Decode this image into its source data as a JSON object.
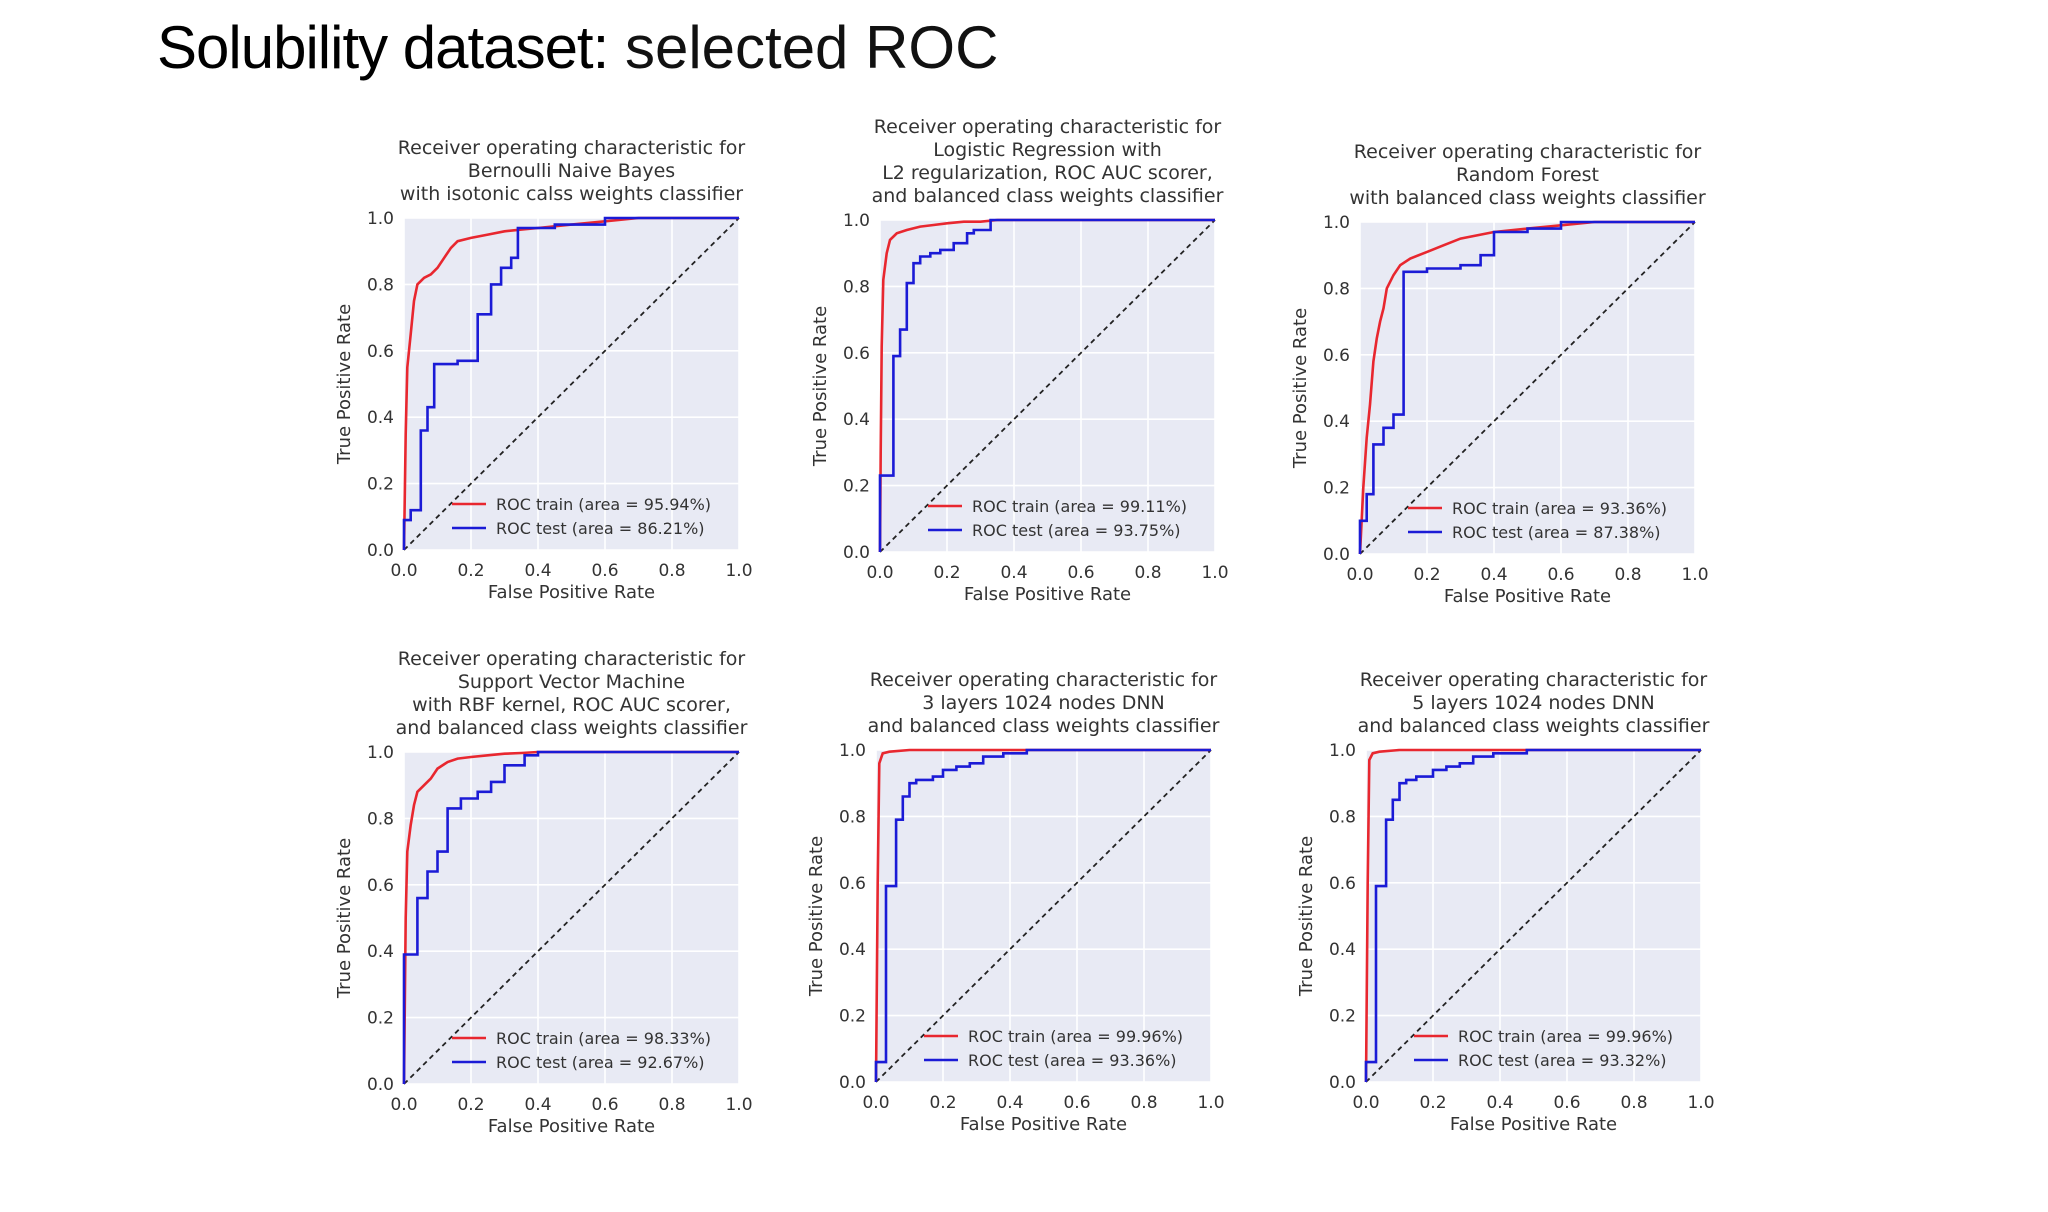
{
  "slide": {
    "title_bold": "Solubility dataset:",
    "title_rest": " selected ROC"
  },
  "chart_data": [
    {
      "type": "line",
      "title": [
        "Receiver operating characteristic for",
        "Bernoulli Naive Bayes",
        "with isotonic calss weights classifier"
      ],
      "xlabel": "False Positive Rate",
      "ylabel": "True Positive Rate",
      "xlim": [
        0,
        1
      ],
      "ylim": [
        0,
        1
      ],
      "ticks": [
        "0.0",
        "0.2",
        "0.4",
        "0.6",
        "0.8",
        "1.0"
      ],
      "legend": "lower-right",
      "grid": true,
      "series": [
        {
          "name": "ROC train (area = 95.94%)",
          "color": "#e8272f",
          "x": [
            0,
            0.005,
            0.01,
            0.02,
            0.03,
            0.04,
            0.06,
            0.08,
            0.1,
            0.12,
            0.14,
            0.16,
            0.2,
            0.25,
            0.3,
            0.35,
            0.4,
            0.5,
            0.6,
            0.7,
            1.0
          ],
          "y": [
            0,
            0.35,
            0.55,
            0.65,
            0.75,
            0.8,
            0.82,
            0.83,
            0.85,
            0.88,
            0.91,
            0.93,
            0.94,
            0.95,
            0.96,
            0.965,
            0.97,
            0.98,
            0.99,
            1.0,
            1.0
          ]
        },
        {
          "name": "ROC test (area = 86.21%)",
          "color": "#1b1bd6",
          "x": [
            0,
            0,
            0.02,
            0.02,
            0.05,
            0.05,
            0.07,
            0.07,
            0.09,
            0.09,
            0.16,
            0.16,
            0.22,
            0.22,
            0.26,
            0.26,
            0.29,
            0.29,
            0.32,
            0.32,
            0.34,
            0.34,
            0.45,
            0.45,
            0.6,
            0.6,
            1.0
          ],
          "y": [
            0,
            0.09,
            0.09,
            0.12,
            0.12,
            0.36,
            0.36,
            0.43,
            0.43,
            0.56,
            0.56,
            0.57,
            0.57,
            0.71,
            0.71,
            0.8,
            0.8,
            0.85,
            0.85,
            0.88,
            0.88,
            0.97,
            0.97,
            0.98,
            0.98,
            1.0,
            1.0
          ]
        },
        {
          "name": "",
          "color": "#222222",
          "dashed": true,
          "x": [
            0,
            1
          ],
          "y": [
            0,
            1
          ]
        }
      ]
    },
    {
      "type": "line",
      "title": [
        "Receiver operating characteristic for",
        "Logistic Regression with",
        "L2 regularization, ROC AUC scorer,",
        "and balanced class weights classifier"
      ],
      "xlabel": "False Positive Rate",
      "ylabel": "True Positive Rate",
      "xlim": [
        0,
        1
      ],
      "ylim": [
        0,
        1
      ],
      "ticks": [
        "0.0",
        "0.2",
        "0.4",
        "0.6",
        "0.8",
        "1.0"
      ],
      "legend": "lower-right",
      "grid": true,
      "series": [
        {
          "name": "ROC train (area = 99.11%)",
          "color": "#e8272f",
          "x": [
            0,
            0.002,
            0.005,
            0.01,
            0.02,
            0.03,
            0.05,
            0.08,
            0.12,
            0.16,
            0.2,
            0.25,
            0.3,
            0.35,
            1.0
          ],
          "y": [
            0,
            0.3,
            0.62,
            0.82,
            0.9,
            0.94,
            0.96,
            0.97,
            0.98,
            0.985,
            0.99,
            0.995,
            0.995,
            1.0,
            1.0
          ]
        },
        {
          "name": "ROC test (area = 93.75%)",
          "color": "#1b1bd6",
          "x": [
            0,
            0,
            0.04,
            0.04,
            0.06,
            0.06,
            0.08,
            0.08,
            0.1,
            0.1,
            0.12,
            0.12,
            0.15,
            0.15,
            0.18,
            0.18,
            0.22,
            0.22,
            0.26,
            0.26,
            0.28,
            0.28,
            0.33,
            0.33,
            1.0
          ],
          "y": [
            0,
            0.23,
            0.23,
            0.59,
            0.59,
            0.67,
            0.67,
            0.81,
            0.81,
            0.87,
            0.87,
            0.89,
            0.89,
            0.9,
            0.9,
            0.91,
            0.91,
            0.93,
            0.93,
            0.96,
            0.96,
            0.97,
            0.97,
            1.0,
            1.0
          ]
        },
        {
          "name": "",
          "color": "#222222",
          "dashed": true,
          "x": [
            0,
            1
          ],
          "y": [
            0,
            1
          ]
        }
      ]
    },
    {
      "type": "line",
      "title": [
        "Receiver operating characteristic for",
        "Random Forest",
        "with balanced class weights  classifier"
      ],
      "xlabel": "False Positive Rate",
      "ylabel": "True Positive Rate",
      "xlim": [
        0,
        1
      ],
      "ylim": [
        0,
        1
      ],
      "ticks": [
        "0.0",
        "0.2",
        "0.4",
        "0.6",
        "0.8",
        "1.0"
      ],
      "legend": "lower-right",
      "grid": true,
      "series": [
        {
          "name": "ROC train (area = 93.36%)",
          "color": "#e8272f",
          "x": [
            0,
            0.01,
            0.02,
            0.03,
            0.04,
            0.05,
            0.06,
            0.07,
            0.08,
            0.1,
            0.12,
            0.15,
            0.2,
            0.25,
            0.3,
            0.4,
            0.5,
            0.6,
            0.7,
            1.0
          ],
          "y": [
            0,
            0.2,
            0.35,
            0.45,
            0.58,
            0.65,
            0.7,
            0.74,
            0.8,
            0.84,
            0.87,
            0.89,
            0.91,
            0.93,
            0.95,
            0.97,
            0.98,
            0.99,
            1.0,
            1.0
          ]
        },
        {
          "name": "ROC test (area = 87.38%)",
          "color": "#1b1bd6",
          "x": [
            0,
            0,
            0.02,
            0.02,
            0.04,
            0.04,
            0.07,
            0.07,
            0.1,
            0.1,
            0.13,
            0.13,
            0.2,
            0.2,
            0.3,
            0.3,
            0.36,
            0.36,
            0.4,
            0.4,
            0.5,
            0.5,
            0.6,
            0.6,
            1.0
          ],
          "y": [
            0,
            0.1,
            0.1,
            0.18,
            0.18,
            0.33,
            0.33,
            0.38,
            0.38,
            0.42,
            0.42,
            0.85,
            0.85,
            0.86,
            0.86,
            0.87,
            0.87,
            0.9,
            0.9,
            0.97,
            0.97,
            0.98,
            0.98,
            1.0,
            1.0
          ]
        },
        {
          "name": "",
          "color": "#222222",
          "dashed": true,
          "x": [
            0,
            1
          ],
          "y": [
            0,
            1
          ]
        }
      ]
    },
    {
      "type": "line",
      "title": [
        "Receiver operating characteristic for",
        "Support Vector Machine",
        "with RBF kernel, ROC AUC scorer,",
        "and balanced class weights  classifier"
      ],
      "xlabel": "False Positive Rate",
      "ylabel": "True Positive Rate",
      "xlim": [
        0,
        1
      ],
      "ylim": [
        0,
        1
      ],
      "ticks": [
        "0.0",
        "0.2",
        "0.4",
        "0.6",
        "0.8",
        "1.0"
      ],
      "legend": "lower-right",
      "grid": true,
      "series": [
        {
          "name": "ROC train (area = 98.33%)",
          "color": "#e8272f",
          "x": [
            0,
            0.005,
            0.01,
            0.02,
            0.03,
            0.04,
            0.06,
            0.08,
            0.1,
            0.13,
            0.16,
            0.2,
            0.25,
            0.3,
            0.35,
            0.4,
            1.0
          ],
          "y": [
            0,
            0.5,
            0.7,
            0.78,
            0.84,
            0.88,
            0.9,
            0.92,
            0.95,
            0.97,
            0.98,
            0.985,
            0.99,
            0.995,
            0.997,
            1.0,
            1.0
          ]
        },
        {
          "name": "ROC test (area = 92.67%)",
          "color": "#1b1bd6",
          "x": [
            0,
            0,
            0.04,
            0.04,
            0.07,
            0.07,
            0.1,
            0.1,
            0.13,
            0.13,
            0.17,
            0.17,
            0.22,
            0.22,
            0.26,
            0.26,
            0.3,
            0.3,
            0.36,
            0.36,
            0.4,
            0.4,
            1.0
          ],
          "y": [
            0,
            0.39,
            0.39,
            0.56,
            0.56,
            0.64,
            0.64,
            0.7,
            0.7,
            0.83,
            0.83,
            0.86,
            0.86,
            0.88,
            0.88,
            0.91,
            0.91,
            0.96,
            0.96,
            0.99,
            0.99,
            1.0,
            1.0
          ]
        },
        {
          "name": "",
          "color": "#222222",
          "dashed": true,
          "x": [
            0,
            1
          ],
          "y": [
            0,
            1
          ]
        }
      ]
    },
    {
      "type": "line",
      "title": [
        "Receiver operating characteristic for",
        "3 layers 1024 nodes DNN",
        "and balanced class weights classifier"
      ],
      "xlabel": "False Positive Rate",
      "ylabel": "True Positive Rate",
      "xlim": [
        0,
        1
      ],
      "ylim": [
        0,
        1
      ],
      "ticks": [
        "0.0",
        "0.2",
        "0.4",
        "0.6",
        "0.8",
        "1.0"
      ],
      "legend": "lower-right",
      "grid": true,
      "series": [
        {
          "name": "ROC train (area = 99.96%)",
          "color": "#e8272f",
          "x": [
            0,
            0.005,
            0.01,
            0.02,
            0.04,
            0.1,
            1.0
          ],
          "y": [
            0,
            0.6,
            0.96,
            0.99,
            0.995,
            1.0,
            1.0
          ]
        },
        {
          "name": "ROC test (area = 93.36%)",
          "color": "#1b1bd6",
          "x": [
            0,
            0,
            0.03,
            0.03,
            0.06,
            0.06,
            0.08,
            0.08,
            0.1,
            0.1,
            0.12,
            0.12,
            0.17,
            0.17,
            0.2,
            0.2,
            0.24,
            0.24,
            0.28,
            0.28,
            0.32,
            0.32,
            0.38,
            0.38,
            0.45,
            0.45,
            1.0
          ],
          "y": [
            0,
            0.06,
            0.06,
            0.59,
            0.59,
            0.79,
            0.79,
            0.86,
            0.86,
            0.9,
            0.9,
            0.91,
            0.91,
            0.92,
            0.92,
            0.94,
            0.94,
            0.95,
            0.95,
            0.96,
            0.96,
            0.98,
            0.98,
            0.99,
            0.99,
            1.0,
            1.0
          ]
        },
        {
          "name": "",
          "color": "#222222",
          "dashed": true,
          "x": [
            0,
            1
          ],
          "y": [
            0,
            1
          ]
        }
      ]
    },
    {
      "type": "line",
      "title": [
        "Receiver operating characteristic for",
        "5 layers 1024 nodes DNN",
        "and balanced class weights classifier"
      ],
      "xlabel": "False Positive Rate",
      "ylabel": "True Positive Rate",
      "xlim": [
        0,
        1
      ],
      "ylim": [
        0,
        1
      ],
      "ticks": [
        "0.0",
        "0.2",
        "0.4",
        "0.6",
        "0.8",
        "1.0"
      ],
      "legend": "lower-right",
      "grid": true,
      "series": [
        {
          "name": "ROC train (area = 99.96%)",
          "color": "#e8272f",
          "x": [
            0,
            0.005,
            0.01,
            0.02,
            0.04,
            0.1,
            1.0
          ],
          "y": [
            0,
            0.6,
            0.97,
            0.99,
            0.995,
            1.0,
            1.0
          ]
        },
        {
          "name": "ROC test (area = 93.32%)",
          "color": "#1b1bd6",
          "x": [
            0,
            0,
            0.03,
            0.03,
            0.06,
            0.06,
            0.08,
            0.08,
            0.1,
            0.1,
            0.12,
            0.12,
            0.15,
            0.15,
            0.2,
            0.2,
            0.24,
            0.24,
            0.28,
            0.28,
            0.32,
            0.32,
            0.38,
            0.38,
            0.48,
            0.48,
            1.0
          ],
          "y": [
            0,
            0.06,
            0.06,
            0.59,
            0.59,
            0.79,
            0.79,
            0.85,
            0.85,
            0.9,
            0.9,
            0.91,
            0.91,
            0.92,
            0.92,
            0.94,
            0.94,
            0.95,
            0.95,
            0.96,
            0.96,
            0.98,
            0.98,
            0.99,
            0.99,
            1.0,
            1.0
          ]
        },
        {
          "name": "",
          "color": "#222222",
          "dashed": true,
          "x": [
            0,
            1
          ],
          "y": [
            0,
            1
          ]
        }
      ]
    }
  ]
}
